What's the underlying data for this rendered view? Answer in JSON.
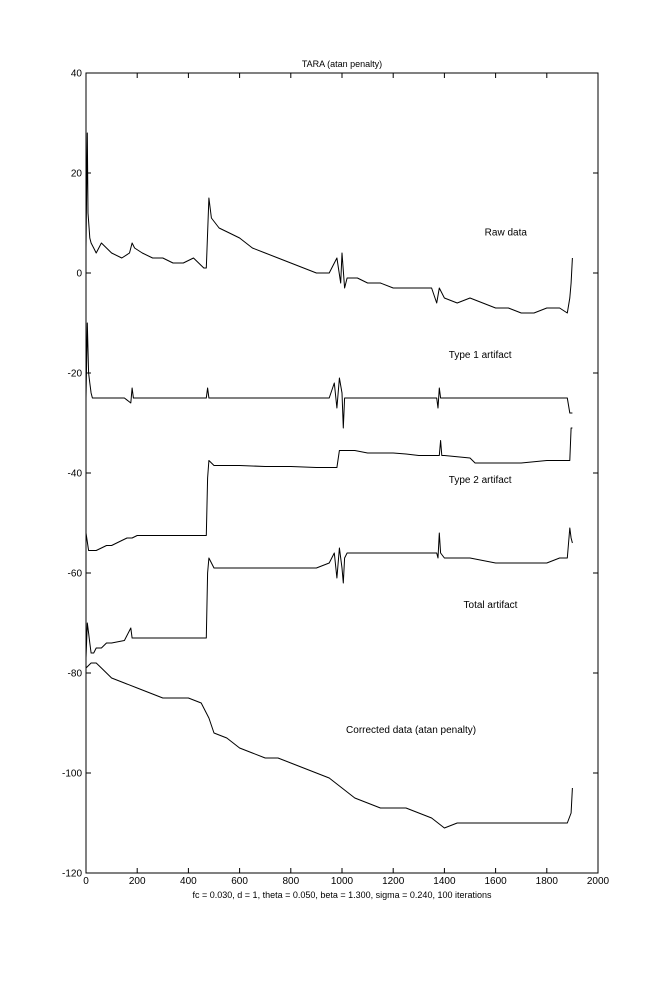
{
  "chart_data": {
    "type": "line",
    "title": "TARA (atan penalty)",
    "xlabel": "fc = 0.030, d = 1, theta = 0.050, beta = 1.300, sigma = 0.240, 100 iterations",
    "ylabel": "",
    "xlim": [
      0,
      2000
    ],
    "ylim": [
      -120,
      40
    ],
    "x_ticks": [
      0,
      200,
      400,
      600,
      800,
      1000,
      1200,
      1400,
      1600,
      1800,
      2000
    ],
    "y_ticks": [
      -120,
      -100,
      -80,
      -60,
      -40,
      -20,
      0,
      20,
      40
    ],
    "grid": false,
    "color": "#000000",
    "annotations": [
      {
        "text": "Raw data",
        "x": 1640,
        "y": 7.5
      },
      {
        "text": "Type 1 artifact",
        "x": 1540,
        "y": -17
      },
      {
        "text": "Type 2 artifact",
        "x": 1540,
        "y": -42
      },
      {
        "text": "Total artifact",
        "x": 1580,
        "y": -67
      },
      {
        "text": "Corrected data (atan penalty)",
        "x": 1270,
        "y": -92
      }
    ],
    "series": [
      {
        "x": [
          0,
          5,
          8,
          12,
          15,
          20,
          30,
          40,
          60,
          80,
          100,
          140,
          170,
          180,
          190,
          220,
          260,
          300,
          340,
          380,
          420,
          460,
          470,
          480,
          490,
          520,
          560,
          600,
          650,
          700,
          750,
          800,
          850,
          900,
          950,
          980,
          995,
          1000,
          1010,
          1020,
          1060,
          1100,
          1150,
          1200,
          1250,
          1300,
          1350,
          1370,
          1380,
          1400,
          1450,
          1500,
          1550,
          1600,
          1650,
          1700,
          1750,
          1800,
          1850,
          1880,
          1890,
          1895,
          1900
        ],
        "y": [
          5,
          28,
          12,
          9,
          7,
          6,
          5,
          4,
          6,
          5,
          4,
          3,
          4,
          6,
          5,
          4,
          3,
          3,
          2,
          2,
          3,
          1,
          1,
          15,
          11,
          9,
          8,
          7,
          5,
          4,
          3,
          2,
          1,
          0,
          0,
          3,
          -2,
          4,
          -3,
          -1,
          -1,
          -2,
          -2,
          -3,
          -3,
          -3,
          -3,
          -6,
          -3,
          -5,
          -6,
          -5,
          -6,
          -7,
          -7,
          -8,
          -8,
          -7,
          -7,
          -8,
          -5,
          -2,
          3
        ]
      },
      {
        "x": [
          0,
          5,
          10,
          15,
          20,
          25,
          30,
          40,
          60,
          100,
          150,
          175,
          180,
          185,
          200,
          300,
          400,
          470,
          475,
          480,
          500,
          600,
          700,
          800,
          900,
          950,
          970,
          980,
          990,
          1000,
          1005,
          1010,
          1020,
          1100,
          1200,
          1300,
          1370,
          1375,
          1380,
          1385,
          1400,
          1500,
          1600,
          1700,
          1800,
          1850,
          1880,
          1890,
          1900
        ],
        "y": [
          -25,
          -10,
          -20,
          -22,
          -24,
          -25,
          -25,
          -25,
          -25,
          -25,
          -25,
          -26,
          -23,
          -25,
          -25,
          -25,
          -25,
          -25,
          -23,
          -25,
          -25,
          -25,
          -25,
          -25,
          -25,
          -25,
          -22,
          -27,
          -21,
          -24,
          -31,
          -25,
          -25,
          -25,
          -25,
          -25,
          -25,
          -27,
          -23,
          -25,
          -25,
          -25,
          -25,
          -25,
          -25,
          -25,
          -25,
          -28,
          -28
        ]
      },
      {
        "x": [
          0,
          10,
          20,
          40,
          60,
          80,
          100,
          120,
          140,
          160,
          180,
          200,
          300,
          400,
          470,
          475,
          480,
          500,
          550,
          600,
          700,
          800,
          900,
          980,
          990,
          1000,
          1050,
          1100,
          1150,
          1200,
          1250,
          1300,
          1350,
          1380,
          1385,
          1390,
          1400,
          1500,
          1520,
          1600,
          1700,
          1800,
          1890,
          1895,
          1900
        ],
        "y": [
          -52,
          -55.5,
          -55.5,
          -55.5,
          -55,
          -54.5,
          -54.5,
          -54,
          -53.5,
          -53,
          -53,
          -52.5,
          -52.5,
          -52.5,
          -52.5,
          -41,
          -37.5,
          -38.5,
          -38.5,
          -38.5,
          -38.7,
          -38.7,
          -38.9,
          -38.9,
          -35.5,
          -35.5,
          -35.5,
          -36,
          -36,
          -36,
          -36.2,
          -36.5,
          -36.5,
          -36.5,
          -33.5,
          -36.5,
          -36.5,
          -37,
          -38,
          -38,
          -38,
          -37.5,
          -37.5,
          -31,
          -31
        ]
      },
      {
        "x": [
          0,
          5,
          10,
          15,
          20,
          30,
          40,
          60,
          80,
          100,
          150,
          175,
          180,
          185,
          200,
          300,
          400,
          470,
          475,
          480,
          500,
          600,
          700,
          800,
          900,
          950,
          970,
          980,
          990,
          1000,
          1005,
          1010,
          1020,
          1100,
          1200,
          1300,
          1370,
          1375,
          1380,
          1385,
          1400,
          1500,
          1600,
          1700,
          1800,
          1850,
          1880,
          1890,
          1895,
          1900
        ],
        "y": [
          -77,
          -70,
          -72,
          -74,
          -76,
          -76,
          -75,
          -75,
          -74,
          -74,
          -73.5,
          -71,
          -73,
          -73,
          -73,
          -73,
          -73,
          -73,
          -60,
          -57,
          -59,
          -59,
          -59,
          -59,
          -59,
          -58,
          -56,
          -61,
          -55,
          -59,
          -62,
          -57,
          -56,
          -56,
          -56,
          -56,
          -56,
          -57,
          -52,
          -56,
          -57,
          -57,
          -58,
          -58,
          -58,
          -57,
          -57,
          -51,
          -53,
          -54
        ]
      },
      {
        "x": [
          0,
          20,
          40,
          60,
          100,
          150,
          200,
          250,
          300,
          350,
          400,
          450,
          480,
          500,
          550,
          600,
          650,
          700,
          750,
          800,
          850,
          900,
          950,
          1000,
          1050,
          1100,
          1150,
          1200,
          1250,
          1300,
          1350,
          1400,
          1450,
          1500,
          1550,
          1600,
          1650,
          1700,
          1750,
          1800,
          1850,
          1880,
          1895,
          1900
        ],
        "y": [
          -79,
          -78,
          -78,
          -79,
          -81,
          -82,
          -83,
          -84,
          -85,
          -85,
          -85,
          -86,
          -89,
          -92,
          -93,
          -95,
          -96,
          -97,
          -97,
          -98,
          -99,
          -100,
          -101,
          -103,
          -105,
          -106,
          -107,
          -107,
          -107,
          -108,
          -109,
          -111,
          -110,
          -110,
          -110,
          -110,
          -110,
          -110,
          -110,
          -110,
          -110,
          -110,
          -108,
          -103
        ]
      }
    ]
  }
}
